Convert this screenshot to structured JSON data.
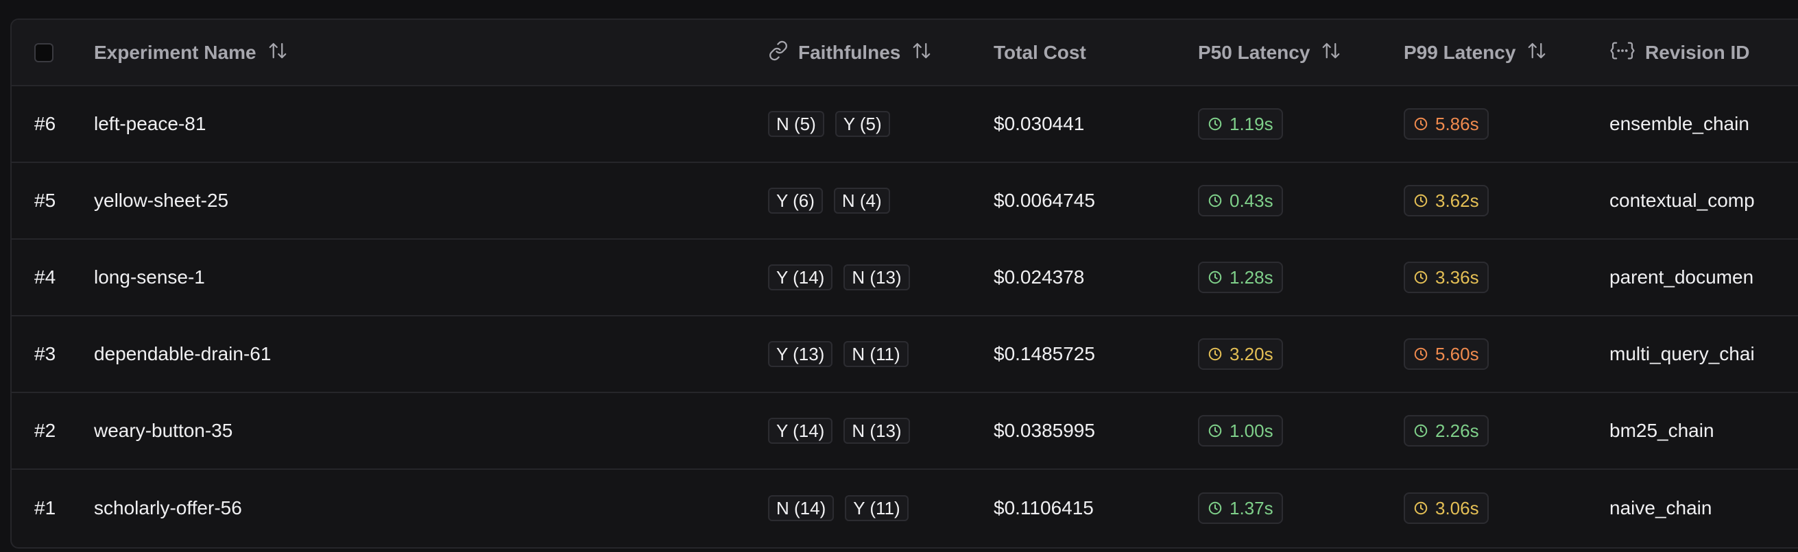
{
  "header": {
    "experiment_name": "Experiment Name",
    "faithfulness": "Faithfulnes",
    "total_cost": "Total Cost",
    "p50_latency": "P50 Latency",
    "p99_latency": "P99 Latency",
    "revision_id": "Revision ID"
  },
  "colors": {
    "green": "#7fd08a",
    "yellow": "#e4bf55",
    "orange": "#ef8a4e"
  },
  "rows": [
    {
      "id": "#6",
      "name": "left-peace-81",
      "faith": [
        "N (5)",
        "Y (5)"
      ],
      "cost": "$0.030441",
      "p50": {
        "value": "1.19s",
        "status": "green"
      },
      "p99": {
        "value": "5.86s",
        "status": "orange"
      },
      "revision": "ensemble_chain"
    },
    {
      "id": "#5",
      "name": "yellow-sheet-25",
      "faith": [
        "Y (6)",
        "N (4)"
      ],
      "cost": "$0.0064745",
      "p50": {
        "value": "0.43s",
        "status": "green"
      },
      "p99": {
        "value": "3.62s",
        "status": "yellow"
      },
      "revision": "contextual_comp"
    },
    {
      "id": "#4",
      "name": "long-sense-1",
      "faith": [
        "Y (14)",
        "N (13)"
      ],
      "cost": "$0.024378",
      "p50": {
        "value": "1.28s",
        "status": "green"
      },
      "p99": {
        "value": "3.36s",
        "status": "yellow"
      },
      "revision": "parent_documen"
    },
    {
      "id": "#3",
      "name": "dependable-drain-61",
      "faith": [
        "Y (13)",
        "N (11)"
      ],
      "cost": "$0.1485725",
      "p50": {
        "value": "3.20s",
        "status": "yellow"
      },
      "p99": {
        "value": "5.60s",
        "status": "orange"
      },
      "revision": "multi_query_chai"
    },
    {
      "id": "#2",
      "name": "weary-button-35",
      "faith": [
        "Y (14)",
        "N (13)"
      ],
      "cost": "$0.0385995",
      "p50": {
        "value": "1.00s",
        "status": "green"
      },
      "p99": {
        "value": "2.26s",
        "status": "green"
      },
      "revision": "bm25_chain"
    },
    {
      "id": "#1",
      "name": "scholarly-offer-56",
      "faith": [
        "N (14)",
        "Y (11)"
      ],
      "cost": "$0.1106415",
      "p50": {
        "value": "1.37s",
        "status": "green"
      },
      "p99": {
        "value": "3.06s",
        "status": "yellow"
      },
      "revision": "naive_chain"
    }
  ]
}
